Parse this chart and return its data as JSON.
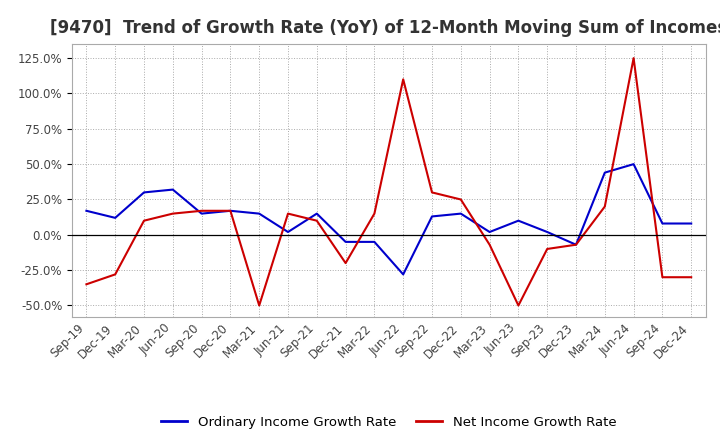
{
  "title": "[9470]  Trend of Growth Rate (YoY) of 12-Month Moving Sum of Incomes",
  "background_color": "#ffffff",
  "plot_bg_color": "#ffffff",
  "grid_color": "#aaaaaa",
  "x_labels": [
    "Sep-19",
    "Dec-19",
    "Mar-20",
    "Jun-20",
    "Sep-20",
    "Dec-20",
    "Mar-21",
    "Jun-21",
    "Sep-21",
    "Dec-21",
    "Mar-22",
    "Jun-22",
    "Sep-22",
    "Dec-22",
    "Mar-23",
    "Jun-23",
    "Sep-23",
    "Dec-23",
    "Mar-24",
    "Jun-24",
    "Sep-24",
    "Dec-24"
  ],
  "ordinary_income": [
    0.17,
    0.12,
    0.3,
    0.32,
    0.15,
    0.17,
    0.15,
    0.02,
    0.15,
    -0.05,
    -0.05,
    -0.28,
    0.13,
    0.15,
    0.02,
    0.1,
    0.02,
    -0.07,
    0.44,
    0.5,
    0.08,
    0.08
  ],
  "net_income": [
    -0.35,
    -0.28,
    0.1,
    0.15,
    0.17,
    0.17,
    -0.5,
    0.15,
    0.1,
    -0.2,
    0.15,
    1.1,
    0.3,
    0.25,
    -0.07,
    -0.5,
    -0.1,
    -0.07,
    0.2,
    1.25,
    -0.3,
    -0.3
  ],
  "ordinary_color": "#0000cc",
  "net_color": "#cc0000",
  "legend_labels": [
    "Ordinary Income Growth Rate",
    "Net Income Growth Rate"
  ],
  "title_fontsize": 12,
  "tick_fontsize": 8.5,
  "legend_fontsize": 9.5,
  "title_color": "#333333"
}
